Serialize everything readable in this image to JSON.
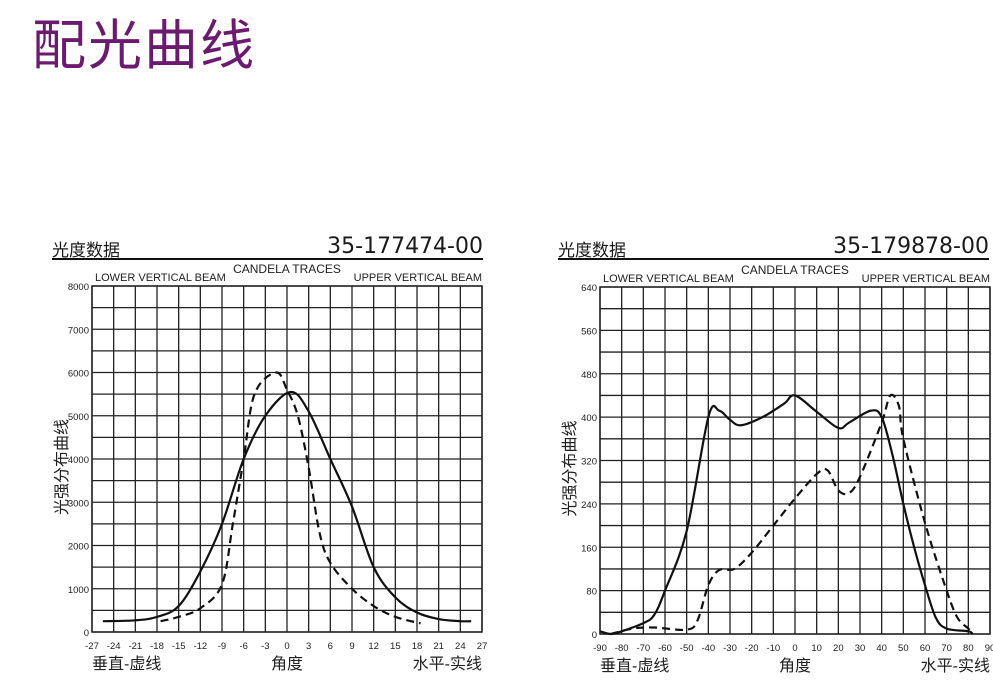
{
  "page_title": "配光曲线",
  "chart_data": [
    {
      "type": "line",
      "header_left": "光度数据",
      "part_number": "35-177474-00",
      "title": "CANDELA TRACES",
      "left_caption": "LOWER VERTICAL BEAM",
      "right_caption": "UPPER VERTICAL BEAM",
      "ylabel": "光强分布曲线",
      "xlabel": "角度",
      "xlabel_left": "垂直-虚线",
      "xlabel_right": "水平-实线",
      "xlim": [
        -27,
        27
      ],
      "ylim": [
        0,
        8000
      ],
      "grid": true,
      "x_ticks": [
        -27,
        -24,
        -21,
        -18,
        -15,
        -12,
        -9,
        -6,
        -3,
        0,
        3,
        6,
        9,
        12,
        15,
        18,
        21,
        24,
        27
      ],
      "y_ticks": [
        0,
        1000,
        2000,
        3000,
        4000,
        5000,
        6000,
        7000,
        8000
      ],
      "series": [
        {
          "style": "solid",
          "x": [
            -25.5,
            -21,
            -18,
            -15,
            -12,
            -9,
            -6,
            -3,
            0.5,
            3,
            6,
            9,
            12,
            15,
            18,
            21,
            24,
            25.5
          ],
          "y": [
            250,
            270,
            350,
            600,
            1400,
            2500,
            4000,
            5000,
            5550,
            5100,
            4000,
            2900,
            1500,
            800,
            450,
            300,
            250,
            250
          ]
        },
        {
          "style": "dashed",
          "x": [
            -17.5,
            -15,
            -12,
            -9,
            -7.5,
            -6,
            -4.5,
            -1.5,
            0,
            1.5,
            3,
            4.5,
            6,
            9,
            12,
            15,
            18.5
          ],
          "y": [
            250,
            350,
            550,
            1100,
            2500,
            4000,
            5500,
            6000,
            5600,
            5000,
            3800,
            2300,
            1600,
            1000,
            600,
            350,
            200
          ]
        }
      ]
    },
    {
      "type": "line",
      "header_left": "光度数据",
      "part_number": "35-179878-00",
      "title": "CANDELA TRACES",
      "left_caption": "LOWER VERTICAL BEAM",
      "right_caption": "UPPER VERTICAL BEAM",
      "ylabel": "光强分布曲线",
      "xlabel": "角度",
      "xlabel_left": "垂直-虚线",
      "xlabel_right": "水平-实线",
      "xlim": [
        -90,
        90
      ],
      "ylim": [
        0,
        640
      ],
      "grid": true,
      "x_ticks": [
        -90,
        -80,
        -70,
        -60,
        -50,
        -40,
        -30,
        -20,
        -10,
        0,
        10,
        20,
        30,
        40,
        50,
        60,
        70,
        80,
        90
      ],
      "y_ticks": [
        0,
        80,
        160,
        240,
        320,
        400,
        480,
        560,
        640
      ],
      "series": [
        {
          "style": "solid",
          "x": [
            -90,
            -85,
            -80,
            -70,
            -65,
            -60,
            -50,
            -40,
            -35,
            -30,
            -25,
            -15,
            -5,
            0,
            10,
            20,
            25,
            35,
            40,
            45,
            50,
            55,
            60,
            65,
            70,
            80,
            82
          ],
          "y": [
            5,
            0,
            5,
            20,
            35,
            80,
            190,
            400,
            412,
            395,
            385,
            400,
            425,
            440,
            410,
            380,
            390,
            412,
            400,
            330,
            240,
            160,
            90,
            30,
            10,
            5,
            0
          ]
        },
        {
          "style": "dashed",
          "x": [
            -85,
            -75,
            -65,
            -50,
            -45,
            -40,
            -35,
            -28,
            -20,
            -10,
            0,
            10,
            15,
            20,
            25,
            30,
            40,
            44,
            48,
            50,
            60,
            70,
            75,
            80,
            82
          ],
          "y": [
            0,
            10,
            12,
            8,
            25,
            90,
            118,
            120,
            150,
            200,
            250,
            295,
            302,
            265,
            260,
            290,
            390,
            440,
            420,
            360,
            205,
            80,
            30,
            10,
            0
          ]
        }
      ]
    }
  ]
}
